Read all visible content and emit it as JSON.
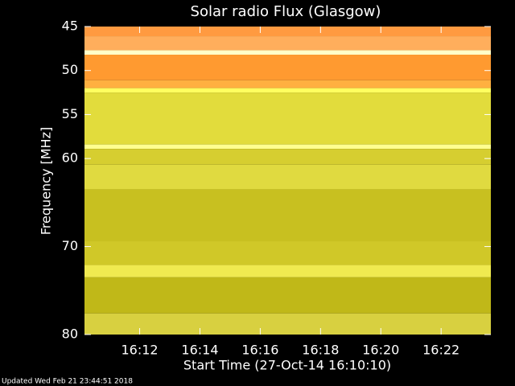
{
  "chart_data": {
    "type": "spectrogram",
    "title": "Solar radio Flux (Glasgow)",
    "y_label": "Frequency [MHz]",
    "x_label": "Start Time (27-Oct-14 16:10:10)",
    "footer": "Updated Wed Feb 21 23:44:51 2018",
    "ylim": [
      45,
      80
    ],
    "yticks": [
      45,
      50,
      55,
      60,
      70,
      80
    ],
    "xlim": [
      970.17,
      983.65
    ],
    "xticks": [
      {
        "value": 972,
        "label": "16:12"
      },
      {
        "value": 974,
        "label": "16:14"
      },
      {
        "value": 976,
        "label": "16:16"
      },
      {
        "value": 978,
        "label": "16:18"
      },
      {
        "value": 980,
        "label": "16:20"
      },
      {
        "value": 982,
        "label": "16:22"
      }
    ],
    "bands": [
      {
        "from": 45,
        "to": 46.1,
        "color": "#ff9a40"
      },
      {
        "from": 46.1,
        "to": 47.7,
        "color": "#ffae5c"
      },
      {
        "from": 47.7,
        "to": 48.2,
        "color": "#ffffc8"
      },
      {
        "from": 48.2,
        "to": 51.1,
        "color": "#ff9a30"
      },
      {
        "from": 51.1,
        "to": 52,
        "color": "#ffb040"
      },
      {
        "from": 52,
        "to": 52.5,
        "color": "#ffff60"
      },
      {
        "from": 52.5,
        "to": 58.4,
        "color": "#e2dc3c"
      },
      {
        "from": 58.4,
        "to": 58.9,
        "color": "#ffff90"
      },
      {
        "from": 58.9,
        "to": 60.7,
        "color": "#d6ce30"
      },
      {
        "from": 60.7,
        "to": 63.5,
        "color": "#e0da40"
      },
      {
        "from": 63.5,
        "to": 69.4,
        "color": "#c8c020"
      },
      {
        "from": 69.4,
        "to": 72.1,
        "color": "#d0c828"
      },
      {
        "from": 72.1,
        "to": 73.5,
        "color": "#f0ea50"
      },
      {
        "from": 73.5,
        "to": 77.6,
        "color": "#c0b818"
      },
      {
        "from": 77.6,
        "to": 80,
        "color": "#d8d040"
      }
    ]
  }
}
